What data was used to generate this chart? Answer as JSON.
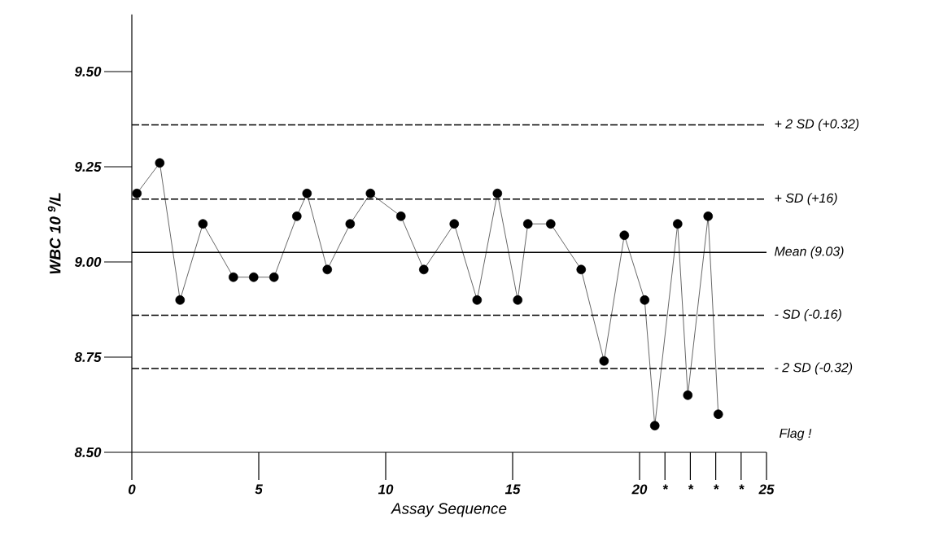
{
  "chart_data": {
    "type": "line",
    "xlabel": "Assay Sequence",
    "ylabel": "WBC 10 $^{9}$/L",
    "x": [
      0.2,
      1.1,
      1.9,
      2.8,
      4.0,
      4.8,
      5.6,
      6.5,
      6.9,
      7.7,
      8.6,
      9.4,
      10.6,
      11.5,
      12.7,
      13.6,
      14.4,
      15.2,
      15.6,
      16.5,
      17.7,
      18.6,
      19.4,
      20.2,
      20.6,
      21.5,
      21.9,
      22.7,
      23.1
    ],
    "values": [
      9.18,
      9.26,
      8.9,
      9.1,
      8.96,
      8.96,
      8.96,
      9.12,
      9.18,
      8.98,
      9.1,
      9.18,
      9.12,
      8.98,
      9.1,
      8.9,
      9.18,
      8.9,
      9.1,
      9.1,
      8.98,
      8.74,
      9.07,
      8.9,
      8.57,
      9.1,
      8.65,
      9.12,
      8.6
    ],
    "color": "#000000",
    "marker": "circle",
    "line_style": "solid",
    "xlim": [
      0,
      25
    ],
    "ylim": [
      8.5,
      9.65
    ],
    "xticks": [
      0,
      5,
      10,
      15,
      20,
      {
        "value": 21,
        "label": "*"
      },
      {
        "value": 22,
        "label": "*"
      },
      {
        "value": 23,
        "label": "*"
      },
      {
        "value": 24,
        "label": "*"
      },
      25
    ],
    "yticks": [
      {
        "value": 8.5,
        "label": "8.50"
      },
      {
        "value": 8.75,
        "label": "8.75"
      },
      {
        "value": 9.0,
        "label": "9.00"
      },
      {
        "value": 9.25,
        "label": "9.25"
      },
      {
        "value": 9.5,
        "label": "9.50"
      }
    ],
    "ref_lines": [
      {
        "axis": "y",
        "value": 9.36,
        "label": "+ 2 SD (+0.32)",
        "line_style": "dashed"
      },
      {
        "axis": "y",
        "value": 9.165,
        "label": "+ SD (+16)",
        "line_style": "dashed"
      },
      {
        "axis": "y",
        "value": 9.025,
        "label": "Mean (9.03)",
        "line_style": "solid"
      },
      {
        "axis": "y",
        "value": 8.86,
        "label": "- SD (-0.16)",
        "line_style": "dashed"
      },
      {
        "axis": "y",
        "value": 8.72,
        "label": "- 2 SD (-0.32)",
        "line_style": "dashed"
      }
    ],
    "annotations": [
      "Flag !"
    ]
  }
}
